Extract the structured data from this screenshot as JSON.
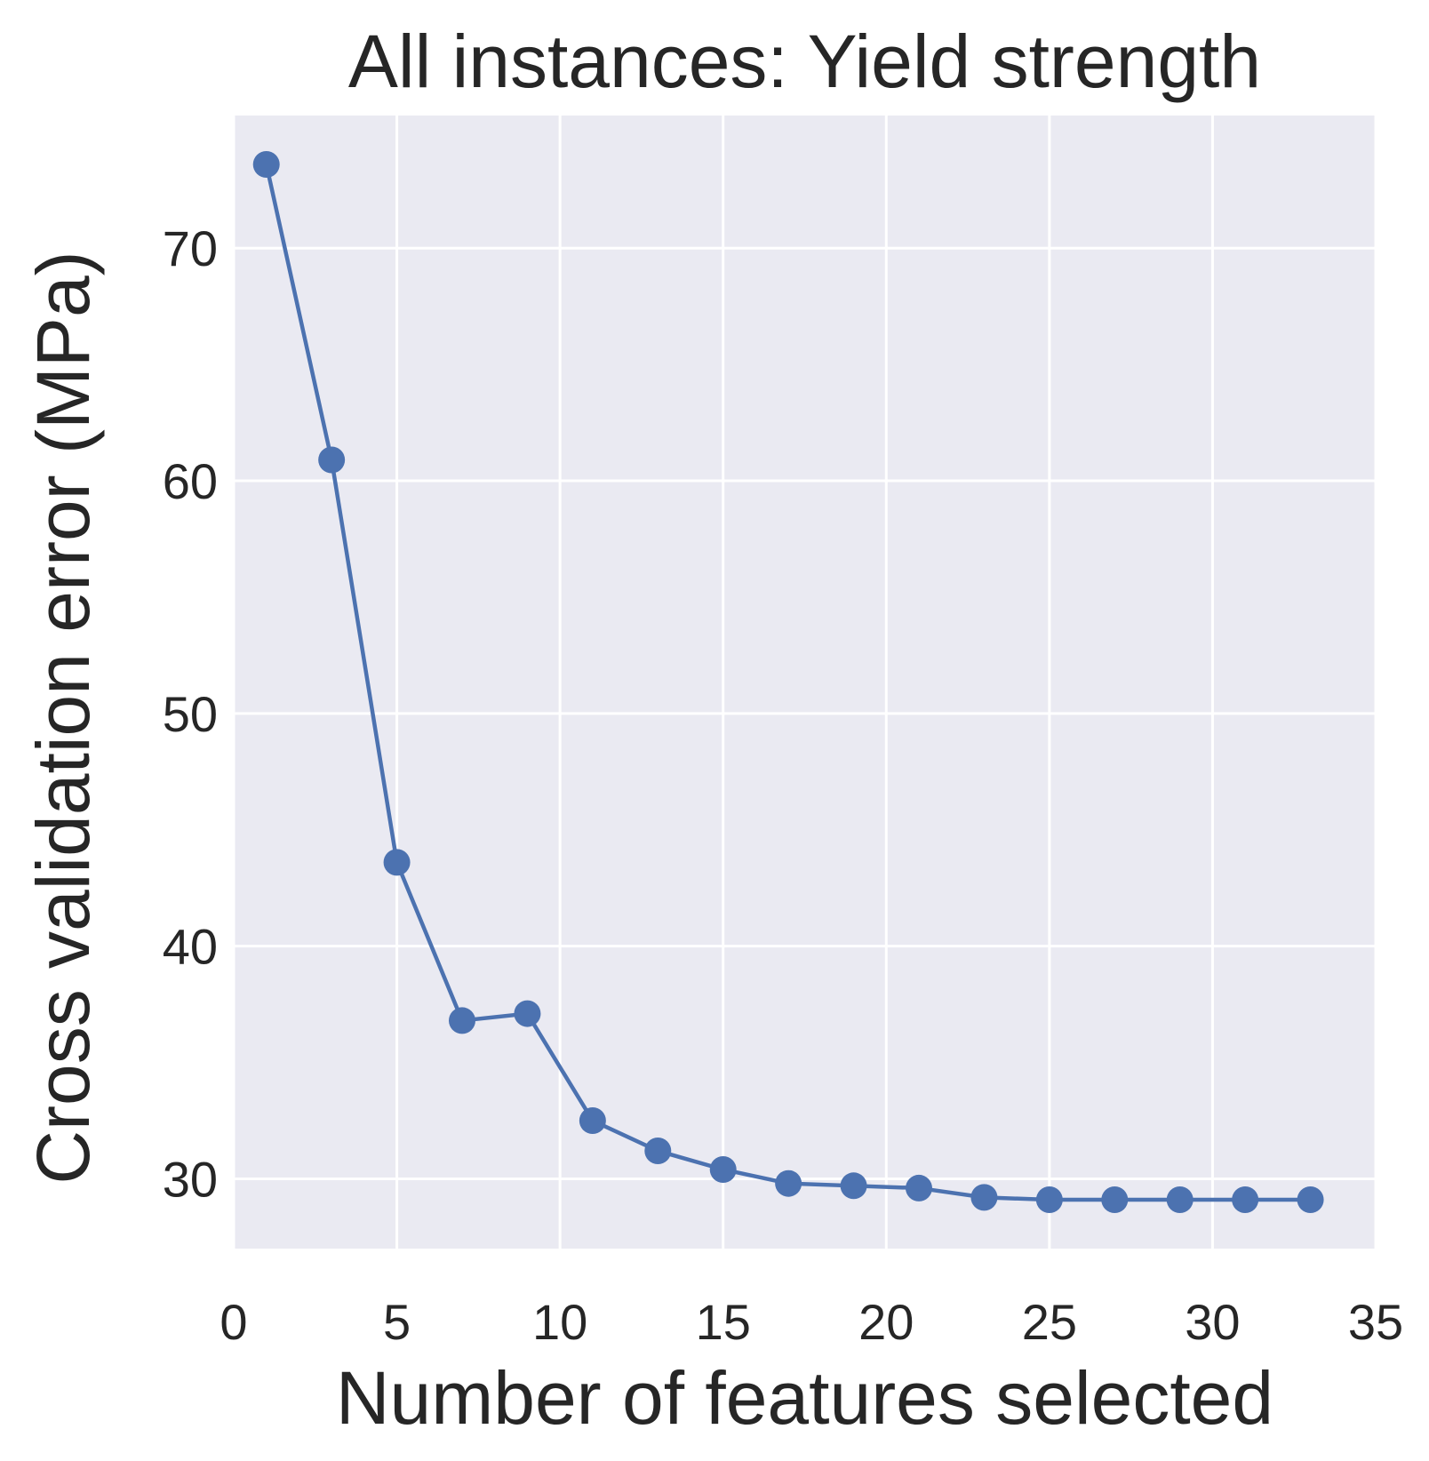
{
  "chart_data": {
    "type": "line",
    "title": "All instances: Yield strength",
    "xlabel": "Number of features selected",
    "ylabel": "Cross validation error (MPa)",
    "xlim": [
      0,
      35
    ],
    "ylim": [
      27,
      75.7
    ],
    "xticks": [
      0,
      5,
      10,
      15,
      20,
      25,
      30,
      35
    ],
    "yticks": [
      30,
      40,
      50,
      60,
      70
    ],
    "grid": true,
    "legend": "none",
    "colors": {
      "background": "#eaeaf2",
      "grid": "#ffffff",
      "series": "#4c72b0"
    },
    "series": [
      {
        "x": [
          1,
          3,
          5,
          7,
          9,
          11,
          13,
          15,
          17,
          19,
          21,
          23,
          25,
          27,
          29,
          31,
          33
        ],
        "y": [
          73.6,
          60.9,
          43.6,
          36.8,
          37.1,
          32.5,
          31.2,
          30.4,
          29.8,
          29.7,
          29.6,
          29.2,
          29.1,
          29.1,
          29.1,
          29.1,
          29.1
        ]
      }
    ]
  }
}
